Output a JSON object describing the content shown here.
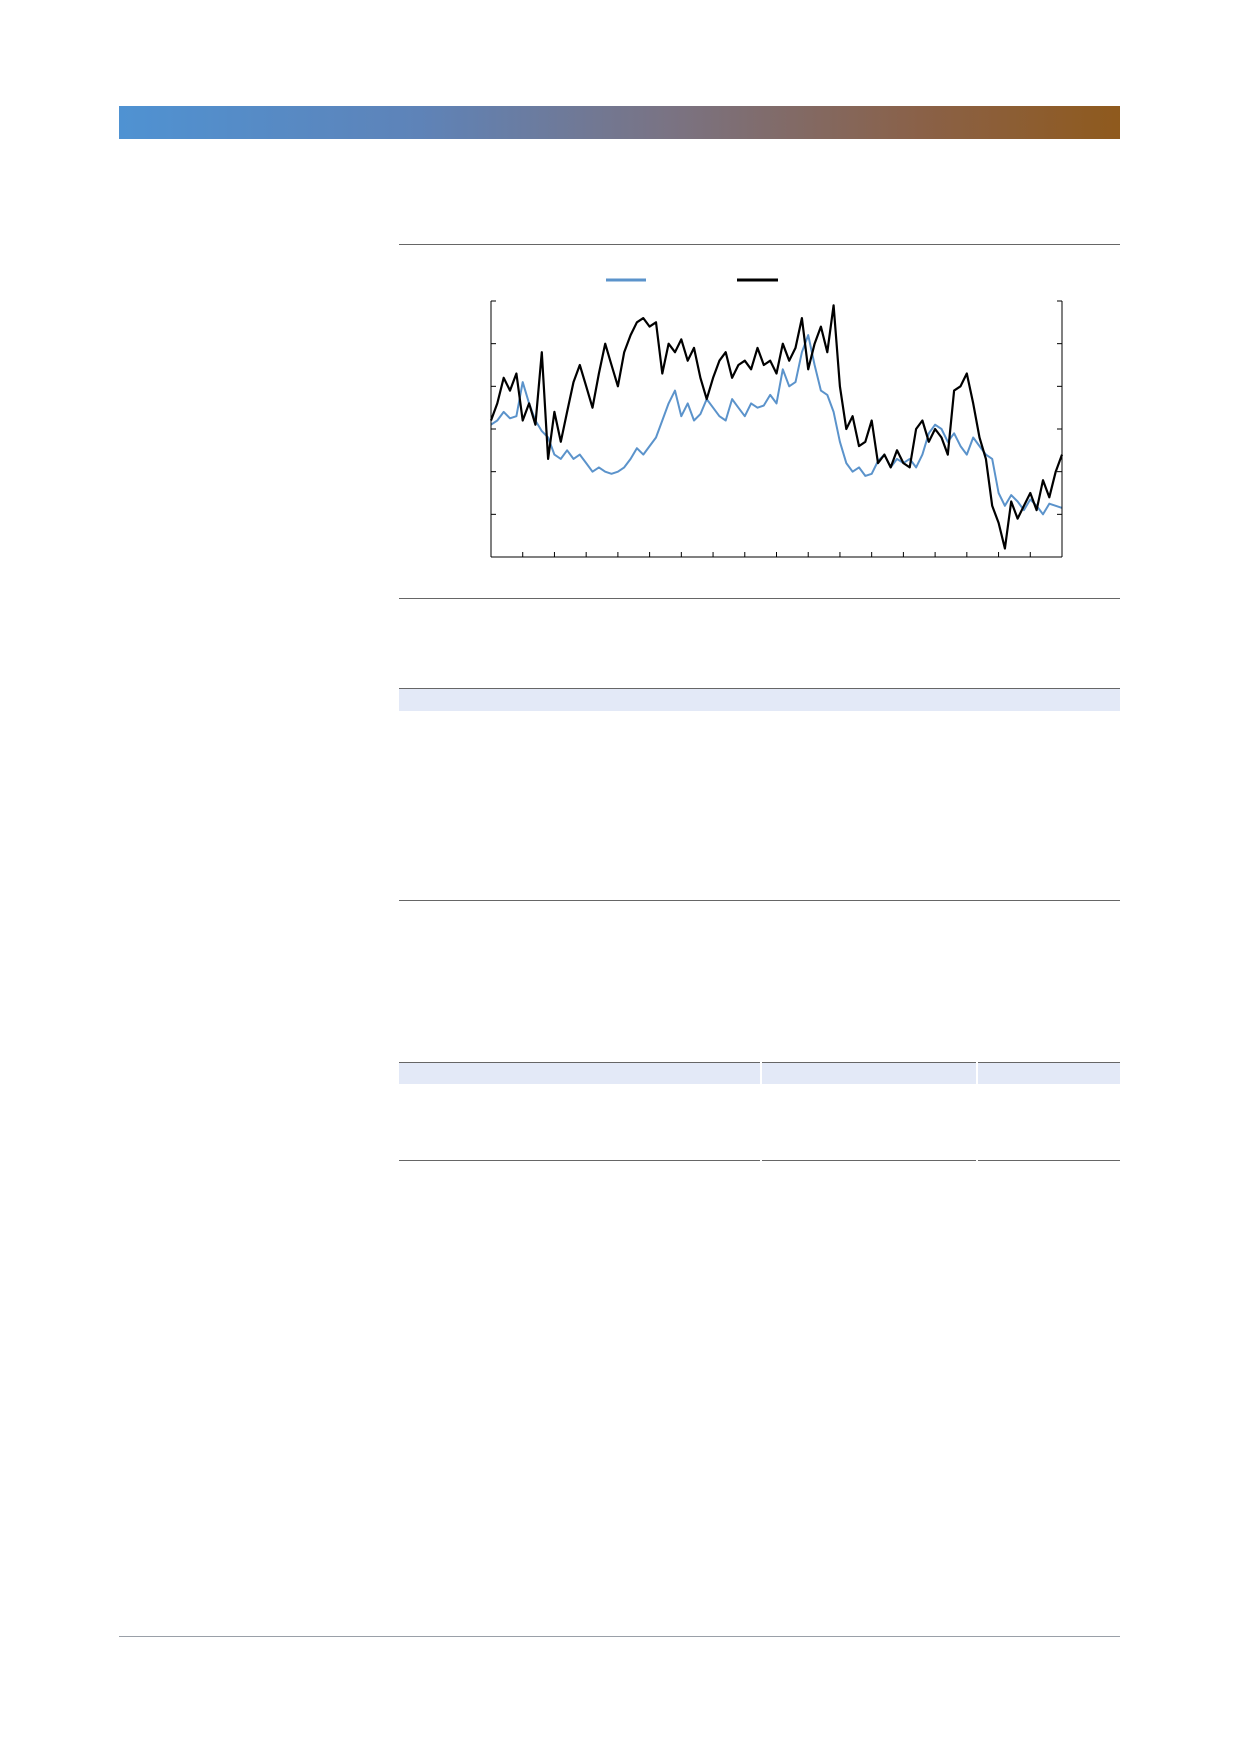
{
  "colors": {
    "banner_start": "#4f92d2",
    "banner_end": "#8f5a1d",
    "series_blue": "#5b93cb",
    "series_black": "#000000",
    "band": "#e3e9f7"
  },
  "chart_data": {
    "type": "line",
    "title": "",
    "xlabel": "",
    "ylabel": "",
    "grid": false,
    "legend": "top-center",
    "x_ticks": 19,
    "y_ticks": 6,
    "x_range": [
      0,
      180
    ],
    "ylim": [
      0,
      6
    ],
    "series": [
      {
        "color": "#5b93cb",
        "points": [
          [
            0,
            3.1
          ],
          [
            2,
            3.2
          ],
          [
            4,
            3.4
          ],
          [
            6,
            3.25
          ],
          [
            8,
            3.3
          ],
          [
            10,
            4.1
          ],
          [
            12,
            3.6
          ],
          [
            14,
            3.2
          ],
          [
            16,
            2.95
          ],
          [
            18,
            2.8
          ],
          [
            20,
            2.4
          ],
          [
            22,
            2.3
          ],
          [
            24,
            2.5
          ],
          [
            26,
            2.3
          ],
          [
            28,
            2.4
          ],
          [
            30,
            2.2
          ],
          [
            32,
            2.0
          ],
          [
            34,
            2.1
          ],
          [
            36,
            2.0
          ],
          [
            38,
            1.95
          ],
          [
            40,
            2.0
          ],
          [
            42,
            2.1
          ],
          [
            44,
            2.3
          ],
          [
            46,
            2.55
          ],
          [
            48,
            2.4
          ],
          [
            50,
            2.6
          ],
          [
            52,
            2.8
          ],
          [
            54,
            3.2
          ],
          [
            56,
            3.6
          ],
          [
            58,
            3.9
          ],
          [
            60,
            3.3
          ],
          [
            62,
            3.6
          ],
          [
            64,
            3.2
          ],
          [
            66,
            3.35
          ],
          [
            68,
            3.7
          ],
          [
            70,
            3.5
          ],
          [
            72,
            3.3
          ],
          [
            74,
            3.2
          ],
          [
            76,
            3.7
          ],
          [
            78,
            3.5
          ],
          [
            80,
            3.3
          ],
          [
            82,
            3.6
          ],
          [
            84,
            3.5
          ],
          [
            86,
            3.55
          ],
          [
            88,
            3.8
          ],
          [
            90,
            3.6
          ],
          [
            92,
            4.4
          ],
          [
            94,
            4.0
          ],
          [
            96,
            4.1
          ],
          [
            98,
            4.8
          ],
          [
            100,
            5.2
          ],
          [
            102,
            4.5
          ],
          [
            104,
            3.9
          ],
          [
            106,
            3.8
          ],
          [
            108,
            3.4
          ],
          [
            110,
            2.7
          ],
          [
            112,
            2.2
          ],
          [
            114,
            2.0
          ],
          [
            116,
            2.1
          ],
          [
            118,
            1.9
          ],
          [
            120,
            1.95
          ],
          [
            122,
            2.25
          ],
          [
            124,
            2.4
          ],
          [
            126,
            2.1
          ],
          [
            128,
            2.3
          ],
          [
            130,
            2.2
          ],
          [
            132,
            2.3
          ],
          [
            134,
            2.1
          ],
          [
            136,
            2.4
          ],
          [
            138,
            2.9
          ],
          [
            140,
            3.1
          ],
          [
            142,
            3.0
          ],
          [
            144,
            2.7
          ],
          [
            146,
            2.9
          ],
          [
            148,
            2.6
          ],
          [
            150,
            2.4
          ],
          [
            152,
            2.8
          ],
          [
            154,
            2.6
          ],
          [
            156,
            2.4
          ],
          [
            158,
            2.3
          ],
          [
            160,
            1.5
          ],
          [
            162,
            1.2
          ],
          [
            164,
            1.45
          ],
          [
            166,
            1.3
          ],
          [
            168,
            1.1
          ],
          [
            170,
            1.35
          ],
          [
            172,
            1.2
          ],
          [
            174,
            1.0
          ],
          [
            176,
            1.25
          ],
          [
            178,
            1.2
          ],
          [
            180,
            1.15
          ]
        ]
      },
      {
        "color": "#000000",
        "points": [
          [
            0,
            3.2
          ],
          [
            2,
            3.6
          ],
          [
            4,
            4.2
          ],
          [
            6,
            3.9
          ],
          [
            8,
            4.3
          ],
          [
            10,
            3.2
          ],
          [
            12,
            3.6
          ],
          [
            14,
            3.1
          ],
          [
            16,
            4.8
          ],
          [
            18,
            2.3
          ],
          [
            20,
            3.4
          ],
          [
            22,
            2.7
          ],
          [
            24,
            3.4
          ],
          [
            26,
            4.1
          ],
          [
            28,
            4.5
          ],
          [
            30,
            4.0
          ],
          [
            32,
            3.5
          ],
          [
            34,
            4.3
          ],
          [
            36,
            5.0
          ],
          [
            38,
            4.5
          ],
          [
            40,
            4.0
          ],
          [
            42,
            4.8
          ],
          [
            44,
            5.2
          ],
          [
            46,
            5.5
          ],
          [
            48,
            5.6
          ],
          [
            50,
            5.4
          ],
          [
            52,
            5.5
          ],
          [
            54,
            4.3
          ],
          [
            56,
            5.0
          ],
          [
            58,
            4.8
          ],
          [
            60,
            5.1
          ],
          [
            62,
            4.6
          ],
          [
            64,
            4.9
          ],
          [
            66,
            4.2
          ],
          [
            68,
            3.7
          ],
          [
            70,
            4.2
          ],
          [
            72,
            4.6
          ],
          [
            74,
            4.8
          ],
          [
            76,
            4.2
          ],
          [
            78,
            4.5
          ],
          [
            80,
            4.6
          ],
          [
            82,
            4.4
          ],
          [
            84,
            4.9
          ],
          [
            86,
            4.5
          ],
          [
            88,
            4.6
          ],
          [
            90,
            4.3
          ],
          [
            92,
            5.0
          ],
          [
            94,
            4.6
          ],
          [
            96,
            4.9
          ],
          [
            98,
            5.6
          ],
          [
            100,
            4.4
          ],
          [
            102,
            5.0
          ],
          [
            104,
            5.4
          ],
          [
            106,
            4.8
          ],
          [
            108,
            5.9
          ],
          [
            110,
            4.0
          ],
          [
            112,
            3.0
          ],
          [
            114,
            3.3
          ],
          [
            116,
            2.6
          ],
          [
            118,
            2.7
          ],
          [
            120,
            3.2
          ],
          [
            122,
            2.2
          ],
          [
            124,
            2.4
          ],
          [
            126,
            2.1
          ],
          [
            128,
            2.5
          ],
          [
            130,
            2.2
          ],
          [
            132,
            2.1
          ],
          [
            134,
            3.0
          ],
          [
            136,
            3.2
          ],
          [
            138,
            2.7
          ],
          [
            140,
            3.0
          ],
          [
            142,
            2.8
          ],
          [
            144,
            2.4
          ],
          [
            146,
            3.9
          ],
          [
            148,
            4.0
          ],
          [
            150,
            4.3
          ],
          [
            152,
            3.6
          ],
          [
            154,
            2.8
          ],
          [
            156,
            2.3
          ],
          [
            158,
            1.2
          ],
          [
            160,
            0.8
          ],
          [
            162,
            0.2
          ],
          [
            164,
            1.3
          ],
          [
            166,
            0.9
          ],
          [
            168,
            1.2
          ],
          [
            170,
            1.5
          ],
          [
            172,
            1.1
          ],
          [
            174,
            1.8
          ],
          [
            176,
            1.4
          ],
          [
            178,
            2.0
          ],
          [
            180,
            2.4
          ]
        ]
      }
    ]
  }
}
